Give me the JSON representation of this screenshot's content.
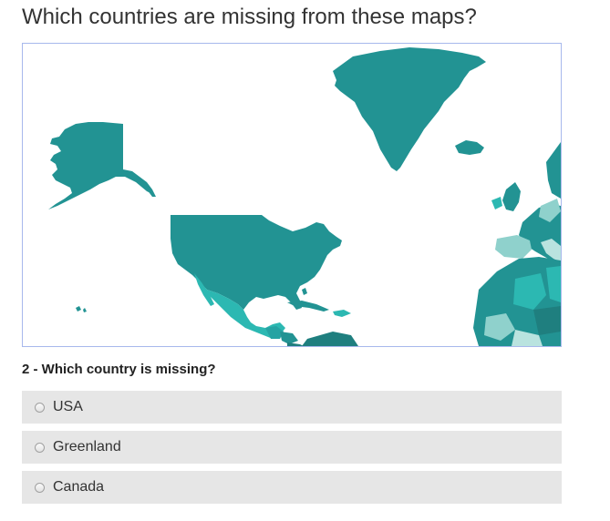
{
  "title": "Which countries are missing from these maps?",
  "question": {
    "label": "2 - Which country is missing?"
  },
  "options": [
    {
      "label": "USA",
      "selected": false
    },
    {
      "label": "Greenland",
      "selected": false
    },
    {
      "label": "Canada",
      "selected": false
    }
  ],
  "map": {
    "missing_region": "canada",
    "colors": {
      "frame_border": "#a7b8ec",
      "teal_dark": "#1f7f7f",
      "teal_main": "#229393",
      "teal_mid": "#26a3a3",
      "teal_bright": "#2cb8b2",
      "teal_light": "#8fd1cc",
      "teal_pale": "#b9e3df",
      "option_bg": "#e6e6e6"
    }
  }
}
